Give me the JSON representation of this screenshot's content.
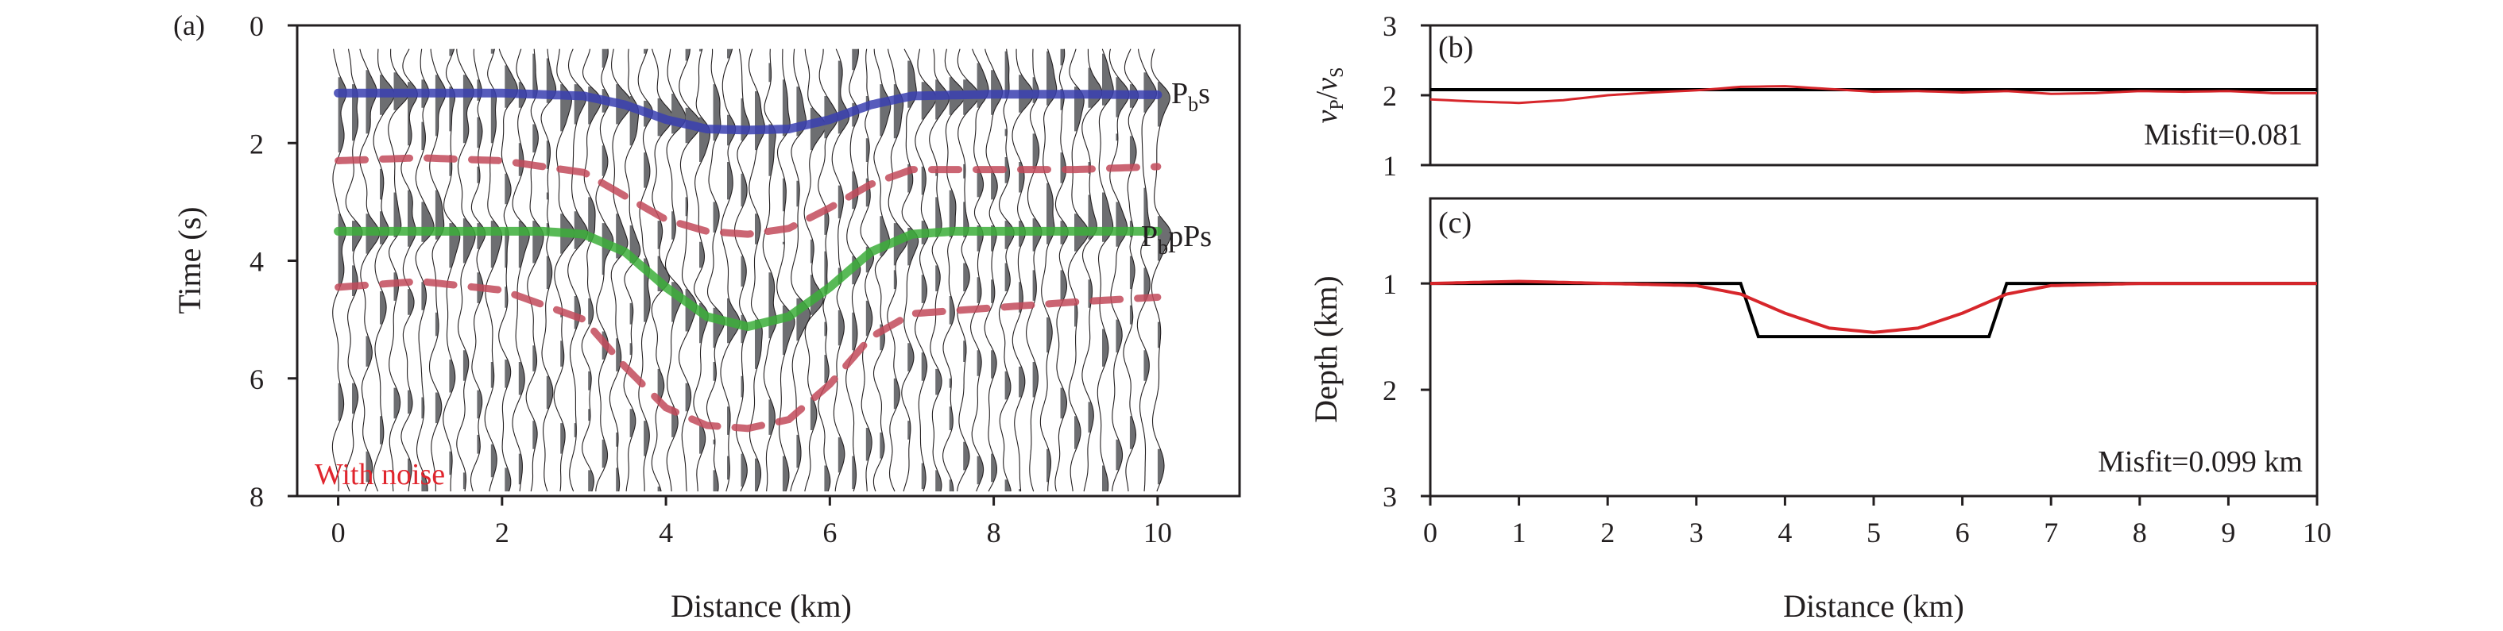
{
  "chart_data": [
    {
      "id": "a",
      "panel_label": "(a)",
      "type": "line",
      "xlabel": "Distance (km)",
      "ylabel": "Time (s)",
      "xlim": [
        -0.5,
        11.0
      ],
      "ylim": [
        0,
        8
      ],
      "y_inverted": true,
      "xticks": [
        "0",
        "2",
        "4",
        "6",
        "8",
        "10"
      ],
      "yticks": [
        "0",
        "2",
        "4",
        "6",
        "8"
      ],
      "annotation": "With noise",
      "annotation_color": "#e0262e",
      "background": "seismic wiggle traces with shaded positive lobes",
      "series": [
        {
          "name": "Pbs",
          "label_main": "P",
          "label_sub": "b",
          "label_tail": "s",
          "color": "#3a3fb0",
          "style": "solid",
          "x": [
            0,
            1,
            2,
            3,
            3.5,
            4,
            4.5,
            5,
            5.5,
            6,
            6.5,
            7,
            8,
            9,
            10
          ],
          "y": [
            1.15,
            1.15,
            1.15,
            1.2,
            1.35,
            1.6,
            1.76,
            1.78,
            1.76,
            1.6,
            1.35,
            1.2,
            1.17,
            1.17,
            1.18
          ]
        },
        {
          "name": "PbpPs",
          "label_main": "P",
          "label_sub": "b",
          "label_tail": "pPs",
          "color": "#3cae3a",
          "style": "solid",
          "x": [
            0,
            1,
            2,
            2.5,
            3,
            3.5,
            4,
            4.5,
            5,
            5.5,
            6,
            6.5,
            7,
            7.5,
            8,
            9,
            10
          ],
          "y": [
            3.5,
            3.5,
            3.5,
            3.5,
            3.55,
            3.85,
            4.45,
            4.95,
            5.12,
            4.95,
            4.45,
            3.85,
            3.55,
            3.5,
            3.5,
            3.5,
            3.5
          ]
        },
        {
          "name": "upper-dashed",
          "color": "#c24a5a",
          "style": "dashed",
          "x": [
            0,
            1,
            2,
            3,
            3.5,
            4,
            4.5,
            5,
            5.5,
            6,
            6.5,
            7,
            8,
            9,
            10
          ],
          "y": [
            2.3,
            2.25,
            2.3,
            2.5,
            2.9,
            3.3,
            3.5,
            3.55,
            3.45,
            3.1,
            2.7,
            2.45,
            2.45,
            2.45,
            2.4
          ]
        },
        {
          "name": "lower-dashed",
          "color": "#c24a5a",
          "style": "dashed",
          "x": [
            0,
            1,
            2,
            3,
            3.5,
            4,
            4.5,
            5,
            5.5,
            6,
            6.5,
            7,
            8,
            9,
            10
          ],
          "y": [
            4.45,
            4.35,
            4.5,
            5.0,
            5.8,
            6.5,
            6.8,
            6.85,
            6.7,
            6.1,
            5.3,
            4.9,
            4.8,
            4.7,
            4.62
          ]
        }
      ]
    },
    {
      "id": "b",
      "panel_label": "(b)",
      "type": "line",
      "xlim": [
        0,
        10
      ],
      "ylim": [
        1,
        3
      ],
      "ylabel_main_1": "v",
      "ylabel_sub_1": "P",
      "ylabel_slash": "/",
      "ylabel_main_2": "v",
      "ylabel_sub_2": "S",
      "yticks": [
        "1",
        "2",
        "3"
      ],
      "annotation": "Misfit=0.081",
      "series": [
        {
          "name": "true",
          "color": "#000000",
          "x": [
            0,
            10
          ],
          "y": [
            2.08,
            2.08
          ]
        },
        {
          "name": "inverted",
          "color": "#d7262b",
          "x": [
            0,
            0.5,
            1,
            1.5,
            2,
            2.5,
            3,
            3.5,
            4,
            4.5,
            5,
            5.5,
            6,
            6.5,
            7,
            7.5,
            8,
            8.5,
            9,
            9.5,
            10
          ],
          "y": [
            1.94,
            1.91,
            1.89,
            1.93,
            2.0,
            2.04,
            2.07,
            2.12,
            2.13,
            2.09,
            2.05,
            2.06,
            2.04,
            2.06,
            2.02,
            2.03,
            2.06,
            2.05,
            2.06,
            2.03,
            2.03
          ]
        }
      ]
    },
    {
      "id": "c",
      "panel_label": "(c)",
      "type": "line",
      "xlabel": "Distance (km)",
      "ylabel": "Depth (km)",
      "xlim": [
        0,
        10
      ],
      "ylim": [
        0.2,
        3
      ],
      "y_inverted": true,
      "xticks": [
        "0",
        "1",
        "2",
        "3",
        "4",
        "5",
        "6",
        "7",
        "8",
        "9",
        "10"
      ],
      "yticks": [
        "1",
        "2",
        "3"
      ],
      "annotation": "Misfit=0.099 km",
      "series": [
        {
          "name": "true",
          "color": "#000000",
          "x": [
            0,
            3.5,
            3.7,
            6.3,
            6.5,
            10
          ],
          "y": [
            1.0,
            1.0,
            1.5,
            1.5,
            1.0,
            1.0
          ]
        },
        {
          "name": "inverted",
          "color": "#d7262b",
          "x": [
            0,
            1,
            2,
            3,
            3.5,
            4,
            4.5,
            5,
            5.5,
            6,
            6.5,
            7,
            8,
            9,
            10
          ],
          "y": [
            1.0,
            0.98,
            1.0,
            1.02,
            1.1,
            1.28,
            1.42,
            1.46,
            1.42,
            1.28,
            1.1,
            1.02,
            1.0,
            1.0,
            1.0
          ]
        }
      ]
    }
  ]
}
